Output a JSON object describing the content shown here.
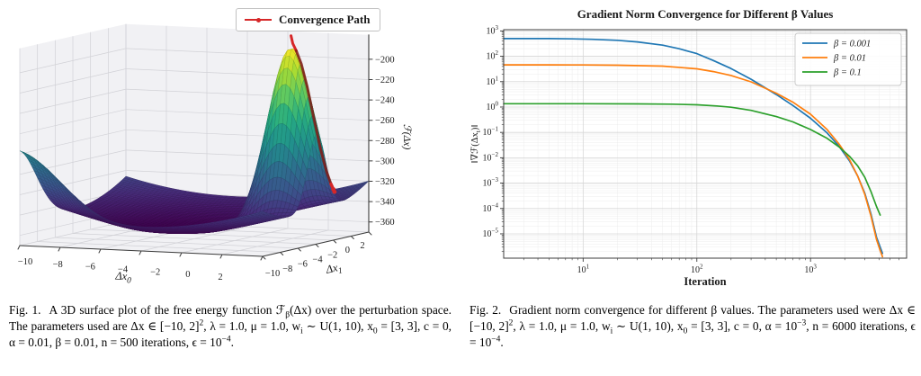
{
  "fig1": {
    "caption_label": "Fig. 1.",
    "caption_text": "A 3D surface plot of the free energy function ℱ_{β}(Δx) over the perturbation space. The parameters used are Δx ∈ [−10, 2]^{2}, λ = 1.0, μ = 1.0, w_{i} ∼ U(1, 10), x_{0} = [3, 3], c = 0, α = 0.01, β = 0.01, n = 500 iterations, ϵ = 10^{−4}.",
    "legend": {
      "label": "Convergence Path",
      "color": "#d62728"
    }
  },
  "fig2": {
    "caption_label": "Fig. 2.",
    "caption_text": "Gradient norm convergence for different β values. The parameters used were Δx ∈ [−10, 2]^{2}, λ = 1.0, μ = 1.0, w_{i} ∼ U(1, 10), x_{0} = [3, 3], c = 0, α = 10^{−3}, n = 6000 iterations, ϵ = 10^{−4}."
  },
  "chart_data": [
    {
      "type": "surface",
      "x_label": "Δx_{0}",
      "y_label": "Δx_{1}",
      "z_label": "ℱ(Δx)",
      "x_range": [
        -10,
        2
      ],
      "y_range": [
        -10,
        2
      ],
      "z_floor": -370,
      "z_top": -176,
      "x_ticks": [
        -10,
        -8,
        -6,
        -4,
        -2,
        0,
        2
      ],
      "y_ticks": [
        -10,
        -8,
        -6,
        -4,
        -2,
        0,
        2
      ],
      "z_ticks": [
        -360,
        -340,
        -320,
        -300,
        -280,
        -260,
        -240,
        -220,
        -200
      ],
      "colormap": "viridis",
      "color_range": [
        -362,
        -178
      ],
      "surface_model": {
        "base": -362,
        "bowl": [
          0.5,
          0.5
        ],
        "bowl_center": [
          -4.5,
          -4.5
        ],
        "ridge": {
          "center": [
            -10,
            -10
          ],
          "amp": 55,
          "width": 8
        },
        "peak": {
          "center": [
            0.7,
            -3.9
          ],
          "amp": 170,
          "width": 2.2
        }
      },
      "path": {
        "label": "Convergence Path",
        "color": "#d62728",
        "points": [
          [
            0.72,
            -3.86,
            12
          ],
          [
            0.78,
            -3.8,
            5
          ],
          [
            0.9,
            -3.68,
            2.5
          ],
          [
            1.08,
            -3.52,
            2.5
          ],
          [
            1.28,
            -3.32,
            2.5
          ],
          [
            1.5,
            -3.05,
            2.5
          ],
          [
            1.7,
            -2.75,
            2.5
          ],
          [
            1.86,
            -2.45,
            2.5
          ],
          [
            1.96,
            -2.18,
            2.5
          ],
          [
            2.0,
            -2.0,
            2.5
          ],
          [
            2.0,
            -1.88,
            2.5
          ]
        ]
      }
    },
    {
      "type": "line",
      "scale": "log-log",
      "title": "Gradient Norm Convergence for Different β Values",
      "xlabel": "Iteration",
      "ylabel": "‖∇ℱ(Δx_{t})‖",
      "xlim": [
        2,
        7000
      ],
      "ylim": [
        1.1e-06,
        1120
      ],
      "x_tick_exponents": [
        1,
        2,
        3
      ],
      "y_tick_exponents": [
        3,
        2,
        1,
        0,
        -1,
        -2,
        -3,
        -4,
        -5
      ],
      "legend_position": "upper right",
      "grid": "major+minor",
      "series": [
        {
          "label": "β = 0.001",
          "color": "#1f77b4",
          "points": [
            [
              2,
              500
            ],
            [
              3,
              500
            ],
            [
              5,
              497
            ],
            [
              8,
              488
            ],
            [
              12,
              468
            ],
            [
              20,
              428
            ],
            [
              30,
              368
            ],
            [
              50,
              275
            ],
            [
              70,
              198
            ],
            [
              100,
              128
            ],
            [
              140,
              68
            ],
            [
              200,
              33
            ],
            [
              300,
              12.5
            ],
            [
              500,
              3.1
            ],
            [
              700,
              1.15
            ],
            [
              1000,
              0.36
            ],
            [
              1400,
              0.095
            ],
            [
              1800,
              0.027
            ],
            [
              2200,
              0.0075
            ],
            [
              2600,
              0.0019
            ],
            [
              3000,
              0.0004
            ],
            [
              3400,
              6e-05
            ],
            [
              3800,
              7.5e-06
            ],
            [
              4100,
              3e-06
            ],
            [
              4300,
              1.7e-06
            ]
          ]
        },
        {
          "label": "β = 0.01",
          "color": "#ff7f0e",
          "points": [
            [
              2,
              46
            ],
            [
              5,
              46
            ],
            [
              10,
              45.5
            ],
            [
              20,
              44.5
            ],
            [
              50,
              41
            ],
            [
              100,
              32
            ],
            [
              140,
              25
            ],
            [
              200,
              17.5
            ],
            [
              300,
              9.8
            ],
            [
              500,
              3.5
            ],
            [
              700,
              1.55
            ],
            [
              1000,
              0.52
            ],
            [
              1400,
              0.13
            ],
            [
              1800,
              0.033
            ],
            [
              2200,
              0.0085
            ],
            [
              2600,
              0.0019
            ],
            [
              3000,
              0.00036
            ],
            [
              3400,
              5e-05
            ],
            [
              3800,
              6e-06
            ],
            [
              4100,
              2.2e-06
            ],
            [
              4300,
              1.25e-06
            ]
          ]
        },
        {
          "label": "β = 0.1",
          "color": "#2ca02c",
          "points": [
            [
              2,
              1.35
            ],
            [
              10,
              1.35
            ],
            [
              30,
              1.33
            ],
            [
              60,
              1.3
            ],
            [
              100,
              1.22
            ],
            [
              150,
              1.1
            ],
            [
              200,
              0.98
            ],
            [
              300,
              0.74
            ],
            [
              500,
              0.42
            ],
            [
              700,
              0.26
            ],
            [
              1000,
              0.13
            ],
            [
              1400,
              0.058
            ],
            [
              1800,
              0.026
            ],
            [
              2200,
              0.0115
            ],
            [
              2600,
              0.0048
            ],
            [
              3000,
              0.0017
            ],
            [
              3400,
              0.00046
            ],
            [
              3800,
              0.00012
            ],
            [
              4100,
              5.5e-05
            ]
          ]
        }
      ]
    }
  ]
}
